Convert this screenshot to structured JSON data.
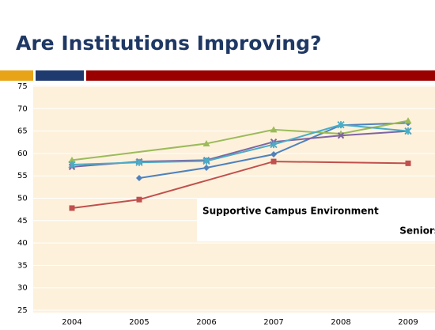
{
  "title": "Are Institutions Improving?",
  "chart_data": {
    "type": "line",
    "annotation": [
      "Supportive Campus Environment",
      "Seniors"
    ],
    "xlim": [
      2004,
      2009
    ],
    "xticks": [
      2004,
      2005,
      2006,
      2007,
      2008,
      2009
    ],
    "ylim": [
      25,
      75
    ],
    "yticks": [
      25,
      30,
      35,
      40,
      45,
      50,
      55,
      60,
      65,
      70,
      75
    ],
    "grid": true,
    "series": [
      {
        "color": "#4f81bd",
        "marker": "diamond",
        "x": [
          2005,
          2006,
          2007,
          2008,
          2009
        ],
        "values": [
          54.5,
          56.8,
          59.8,
          66.3,
          66.8
        ]
      },
      {
        "color": "#c0504d",
        "marker": "square",
        "x": [
          2004,
          2005,
          2007,
          2009
        ],
        "values": [
          47.8,
          49.7,
          58.2,
          57.8
        ]
      },
      {
        "color": "#9bbb59",
        "marker": "triangle",
        "x": [
          2004,
          2006,
          2007,
          2008,
          2009
        ],
        "values": [
          58.5,
          62.2,
          65.3,
          64.4,
          67.3
        ]
      },
      {
        "color": "#8064a2",
        "marker": "cross",
        "x": [
          2004,
          2005,
          2006,
          2007,
          2008,
          2009
        ],
        "values": [
          57.0,
          58.2,
          58.5,
          62.6,
          64.0,
          65.0
        ]
      },
      {
        "color": "#4bacc6",
        "marker": "star",
        "x": [
          2004,
          2005,
          2006,
          2007,
          2008,
          2009
        ],
        "values": [
          57.5,
          58.0,
          58.3,
          62.0,
          66.4,
          65.0
        ]
      }
    ]
  }
}
